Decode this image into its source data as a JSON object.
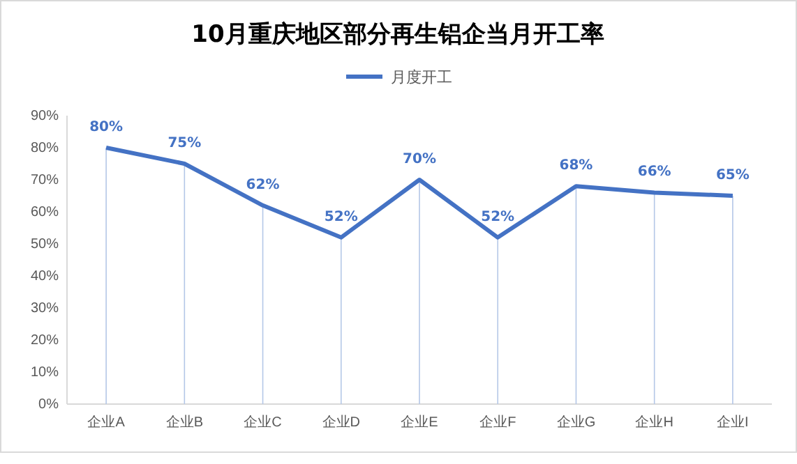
{
  "chart_data": {
    "type": "line",
    "title": "10月重庆地区部分再生铝企当月开工率",
    "categories": [
      "企业A",
      "企业B",
      "企业C",
      "企业D",
      "企业E",
      "企业F",
      "企业G",
      "企业H",
      "企业I"
    ],
    "series": [
      {
        "name": "月度开工",
        "color": "#4472c4",
        "values": [
          80,
          75,
          62,
          52,
          70,
          52,
          68,
          66,
          65
        ],
        "value_labels": [
          "80%",
          "75%",
          "62%",
          "52%",
          "70%",
          "52%",
          "68%",
          "66%",
          "65%"
        ]
      }
    ],
    "ylim": [
      0,
      90
    ],
    "yticks": [
      {
        "value": 0,
        "label": "0%"
      },
      {
        "value": 10,
        "label": "10%"
      },
      {
        "value": 20,
        "label": "20%"
      },
      {
        "value": 30,
        "label": "30%"
      },
      {
        "value": 40,
        "label": "40%"
      },
      {
        "value": 50,
        "label": "50%"
      },
      {
        "value": 60,
        "label": "60%"
      },
      {
        "value": 70,
        "label": "70%"
      },
      {
        "value": 80,
        "label": "80%"
      },
      {
        "value": 90,
        "label": "90%"
      }
    ],
    "grid": "x",
    "legend": "top",
    "marker": "none",
    "line_style": "solid"
  }
}
